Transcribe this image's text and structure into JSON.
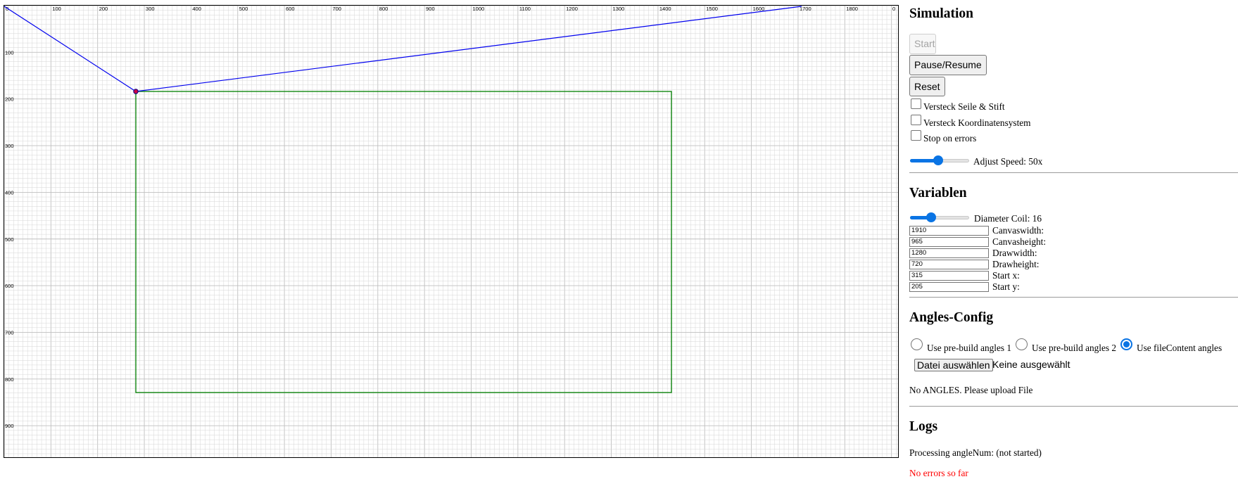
{
  "canvas": {
    "x_ticks": [
      "0",
      "100",
      "200",
      "300",
      "400",
      "500",
      "600",
      "700",
      "800",
      "900",
      "1000",
      "1100",
      "1200",
      "1300",
      "1400",
      "1500",
      "1600",
      "1700",
      "1800",
      "0"
    ],
    "y_ticks": [
      "100",
      "200",
      "300",
      "400",
      "500",
      "600",
      "700",
      "800",
      "900"
    ],
    "grid_color": "#d6d6d6",
    "grid_major_color": "#bfbfbf",
    "rope_color": "#0000ee",
    "draw_area_color": "#008000",
    "pen_color": "#cc0044"
  },
  "simulation": {
    "title": "Simulation",
    "start_label": "Start",
    "pause_label": "Pause/Resume",
    "reset_label": "Reset",
    "hide_ropes_label": "Versteck Seile & Stift",
    "hide_coords_label": "Versteck Koordinatensystem",
    "stop_on_errors_label": "Stop on errors",
    "speed_label": "Adjust Speed: 50x",
    "speed_fraction": 0.48
  },
  "variables": {
    "title": "Variablen",
    "coil_label": "Diameter Coil: 16",
    "coil_fraction": 0.36,
    "fields": [
      {
        "value": "1910",
        "label": "Canvaswidth:"
      },
      {
        "value": "965",
        "label": "Canvasheight:"
      },
      {
        "value": "1280",
        "label": "Drawwidth:"
      },
      {
        "value": "720",
        "label": "Drawheight:"
      },
      {
        "value": "315",
        "label": "Start x:"
      },
      {
        "value": "205",
        "label": "Start y:"
      }
    ]
  },
  "angles": {
    "title": "Angles-Config",
    "options": [
      {
        "label": "Use pre-build angles 1",
        "checked": false
      },
      {
        "label": "Use pre-build angles 2",
        "checked": false
      },
      {
        "label": "Use fileContent angles",
        "checked": true
      }
    ],
    "file_button_label": "Datei auswählen",
    "file_name": "Keine ausgewählt",
    "status": "No ANGLES. Please upload File"
  },
  "logs": {
    "title": "Logs",
    "processing": "Processing angleNum: (not started)",
    "errors": "No errors so far",
    "error_color": "#ff0000"
  }
}
